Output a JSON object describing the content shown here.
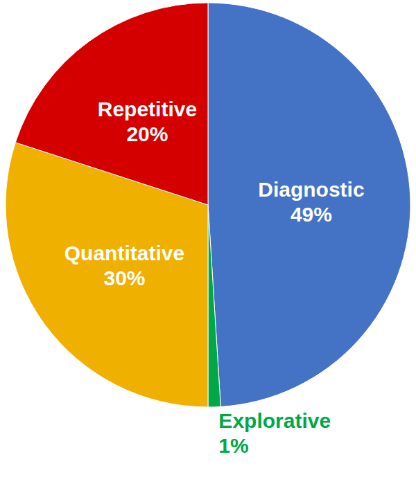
{
  "chart_data": {
    "type": "pie",
    "categories": [
      "Diagnostic",
      "Explorative",
      "Quantitative",
      "Repetitive"
    ],
    "values": [
      49,
      1,
      30,
      20
    ],
    "value_labels": [
      "49%",
      "1%",
      "30%",
      "20%"
    ],
    "colors": [
      "#4472c4",
      "#00a846",
      "#f0b000",
      "#d40000"
    ],
    "data_labels": true
  }
}
